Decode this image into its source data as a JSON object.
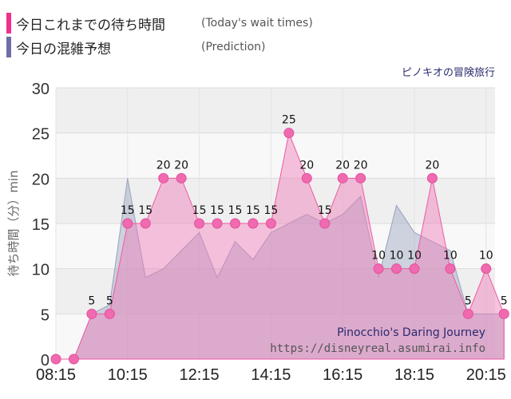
{
  "legend": {
    "today_label": "今日これまでの待ち時間",
    "today_sub": "(Today's wait times)",
    "today_color": "#f0308a",
    "prediction_label": "今日の混雑予想",
    "prediction_sub": "(Prediction)",
    "prediction_color": "#6d6fa6"
  },
  "attraction_jp": "ピノキオの冒険旅行",
  "watermark": {
    "title_en": "Pinocchio's Daring Journey",
    "url": "https://disneyreal.asumirai.info"
  },
  "chart_data": {
    "type": "area",
    "ylabel": "待ち時間（分）min",
    "ylim": [
      0,
      30
    ],
    "yticks": [
      0,
      5,
      10,
      15,
      20,
      25,
      30
    ],
    "xlim": [
      "08:15",
      "20:30"
    ],
    "xticks": [
      "08:15",
      "10:15",
      "12:15",
      "14:15",
      "16:15",
      "18:15",
      "20:15"
    ],
    "series": [
      {
        "name": "今日これまでの待ち時間",
        "color": "#f0308a",
        "x": [
          "08:15",
          "08:45",
          "09:15",
          "09:45",
          "10:15",
          "10:45",
          "11:15",
          "11:45",
          "12:15",
          "12:45",
          "13:15",
          "13:45",
          "14:15",
          "14:45",
          "15:15",
          "15:45",
          "16:15",
          "16:45",
          "17:15",
          "17:45",
          "18:15",
          "18:45",
          "19:15",
          "19:45",
          "20:15",
          "20:45"
        ],
        "values": [
          0,
          0,
          5,
          5,
          15,
          15,
          20,
          20,
          15,
          15,
          15,
          15,
          15,
          25,
          20,
          15,
          20,
          20,
          10,
          10,
          10,
          20,
          10,
          5,
          10,
          5
        ]
      },
      {
        "name": "今日の混雑予想",
        "color": "#8a8fb8",
        "x": [
          "08:15",
          "08:45",
          "09:15",
          "09:45",
          "10:15",
          "10:45",
          "11:15",
          "11:45",
          "12:15",
          "12:45",
          "13:15",
          "13:45",
          "14:15",
          "14:45",
          "15:15",
          "15:45",
          "16:15",
          "16:45",
          "17:15",
          "17:45",
          "18:15",
          "18:45",
          "19:15",
          "19:45",
          "20:15",
          "20:45"
        ],
        "values": [
          0,
          0,
          5,
          6,
          20,
          9,
          10,
          12,
          14,
          9,
          13,
          11,
          14,
          15,
          16,
          15,
          16,
          18,
          9,
          17,
          14,
          13,
          12,
          5,
          5,
          5
        ]
      }
    ]
  }
}
